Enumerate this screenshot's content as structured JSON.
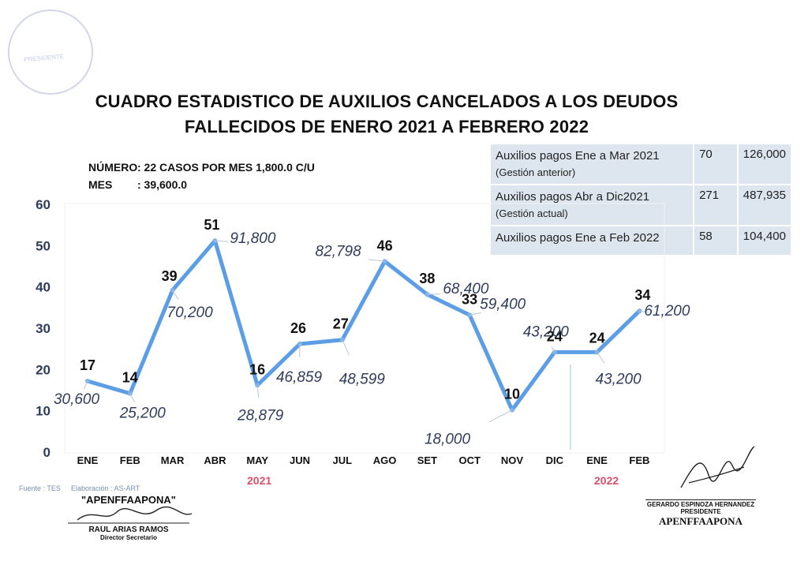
{
  "title_line1": "CUADRO ESTADISTICO DE AUXILIOS CANCELADOS A LOS DEUDOS",
  "title_line2": "FALLECIDOS DE ENERO 2021 A FEBRERO 2022",
  "info": {
    "numero_label": "NÚMERO",
    "numero_value": ": 22 CASOS POR MES  1,800.0 C/U",
    "mes_label": "MES",
    "mes_value": ": 39,600.0"
  },
  "summary_table": [
    {
      "label": "Auxilios pagos Ene a Mar 2021",
      "sub": "(Gestión anterior)",
      "count": "70",
      "amount": "126,000"
    },
    {
      "label": "Auxilios pagos Abr a Dic2021",
      "sub": "(Gestión actual)",
      "count": "271",
      "amount": "487,935"
    },
    {
      "label": "Auxilios pagos Ene a Feb 2022",
      "sub": "",
      "count": "58",
      "amount": "104,400"
    }
  ],
  "years": {
    "first": "2021",
    "second": "2022"
  },
  "footer": {
    "source": "Fuente : TES",
    "elaboration": "Elaboración : AS-ART"
  },
  "stamp_text": "PRESIDENTE",
  "signature_left": {
    "org": "\"APENFFAAPONA\"",
    "name": "RAUL ARIAS RAMOS",
    "role": "Director Secretario"
  },
  "signature_right": {
    "name": "GERARDO ESPINOZA HERNANDEZ",
    "role": "PRESIDENTE",
    "org": "APENFFAAPONA"
  },
  "colors": {
    "line": "#5b9ee6",
    "amount_text": "#2f3c5c",
    "axis_text": "#2f3c5c",
    "year_text": "#d9506b"
  },
  "chart_data": {
    "type": "line",
    "categories": [
      "ENE",
      "FEB",
      "MAR",
      "ABR",
      "MAY",
      "JUN",
      "JUL",
      "AGO",
      "SET",
      "OCT",
      "NOV",
      "DIC",
      "ENE",
      "FEB"
    ],
    "values": [
      17,
      14,
      39,
      51,
      16,
      26,
      27,
      46,
      38,
      33,
      10,
      24,
      24,
      34
    ],
    "amount_labels": [
      "30,600",
      "25,200",
      "70,200",
      "91,800",
      "28,879",
      "46,859",
      "48,599",
      "82,798",
      "68,400",
      "59,400",
      "18,000",
      "43,200",
      "43,200",
      "61,200"
    ],
    "ylim": [
      0,
      60
    ],
    "yticks": [
      0,
      10,
      20,
      30,
      40,
      50,
      60
    ],
    "grid": false,
    "legend": "none"
  }
}
